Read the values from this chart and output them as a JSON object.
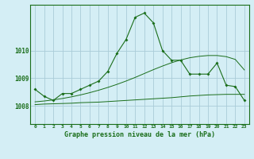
{
  "title": "Graphe pression niveau de la mer (hPa)",
  "background_color": "#d4eef5",
  "grid_color": "#aaccd8",
  "line_color": "#1a6e1a",
  "x_ticks": [
    0,
    1,
    2,
    3,
    4,
    5,
    6,
    7,
    8,
    9,
    10,
    11,
    12,
    13,
    14,
    15,
    16,
    17,
    18,
    19,
    20,
    21,
    22,
    23
  ],
  "y_ticks": [
    1008,
    1009,
    1010
  ],
  "ylim": [
    1007.35,
    1011.65
  ],
  "xlim": [
    -0.5,
    23.5
  ],
  "line_main": [
    1008.6,
    1008.35,
    1008.2,
    1008.45,
    1008.45,
    1008.6,
    1008.75,
    1008.9,
    1009.25,
    1009.9,
    1010.4,
    1011.2,
    1011.35,
    1011.0,
    1010.0,
    1009.65,
    1009.65,
    1009.15,
    1009.15,
    1009.15,
    1009.55,
    1008.75,
    1008.7,
    1008.2
  ],
  "line_smooth_low": [
    1008.05,
    1008.07,
    1008.08,
    1008.09,
    1008.1,
    1008.12,
    1008.13,
    1008.14,
    1008.16,
    1008.18,
    1008.2,
    1008.22,
    1008.24,
    1008.26,
    1008.28,
    1008.3,
    1008.33,
    1008.36,
    1008.38,
    1008.4,
    1008.41,
    1008.42,
    1008.42,
    1008.42
  ],
  "line_smooth_high": [
    1008.15,
    1008.18,
    1008.22,
    1008.27,
    1008.33,
    1008.4,
    1008.48,
    1008.57,
    1008.67,
    1008.78,
    1008.9,
    1009.03,
    1009.17,
    1009.31,
    1009.44,
    1009.56,
    1009.66,
    1009.74,
    1009.79,
    1009.82,
    1009.82,
    1009.78,
    1009.68,
    1009.3
  ]
}
